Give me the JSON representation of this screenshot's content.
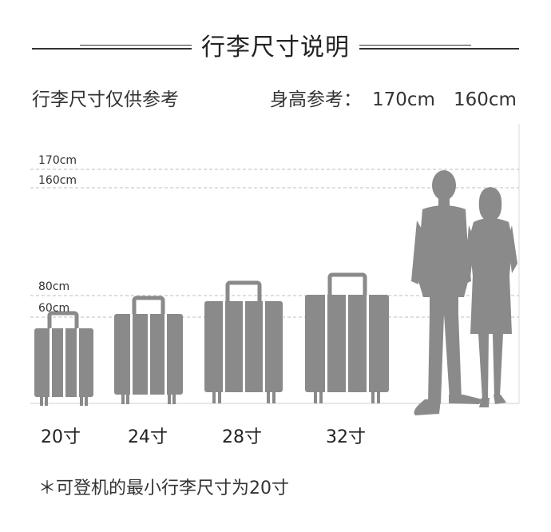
{
  "header": {
    "title": "行李尺寸说明"
  },
  "subheader": {
    "left_text": "行李尺寸仅供参考",
    "height_ref_label": "身高参考：",
    "height_male": "170cm",
    "height_female": "160cm"
  },
  "guides": [
    {
      "label": "170cm"
    },
    {
      "label": "160cm"
    },
    {
      "label": "80cm"
    },
    {
      "label": "60cm"
    }
  ],
  "luggage": [
    {
      "label": "20寸"
    },
    {
      "label": "24寸"
    },
    {
      "label": "28寸"
    },
    {
      "label": "32寸"
    }
  ],
  "footer": {
    "note": "＊可登机的最小行李尺寸为20寸"
  },
  "colors": {
    "silhouette": "#8a8a8a",
    "guide_line": "#bdbdbd",
    "text": "#222222"
  }
}
